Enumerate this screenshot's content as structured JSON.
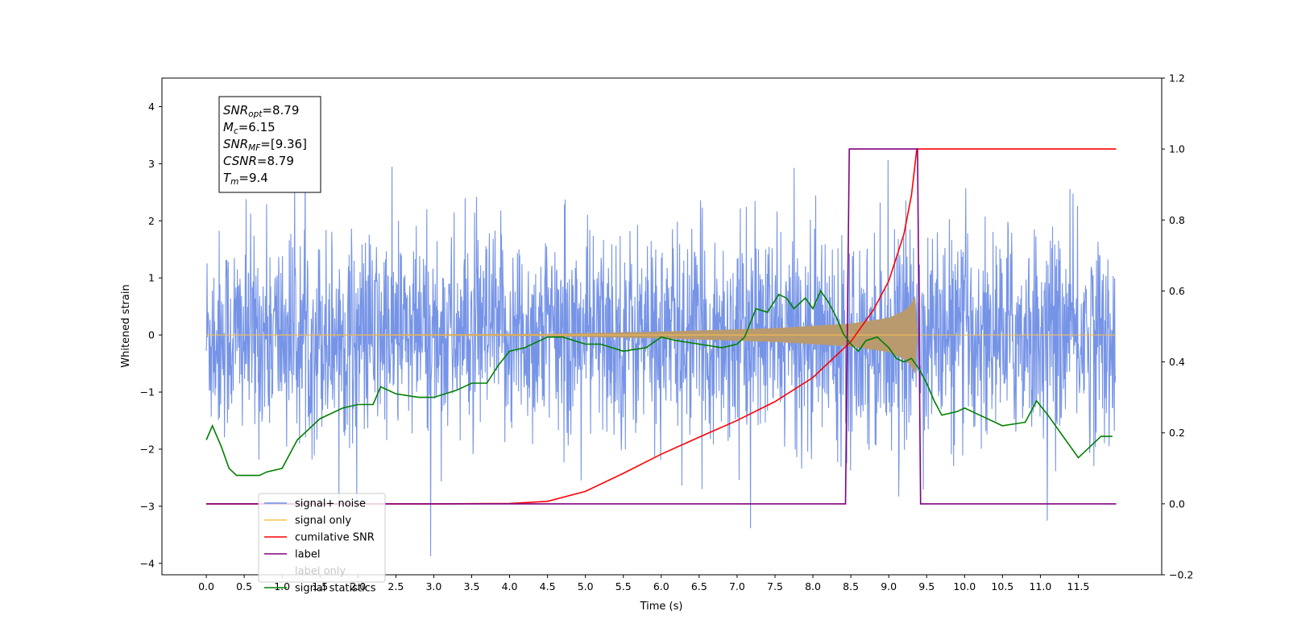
{
  "chart_data": {
    "type": "line",
    "xlabel": "Time (s)",
    "ylabel": "Whitened strain",
    "xlim": [
      -0.585,
      12.6
    ],
    "ylim_left": [
      -4.2,
      4.5
    ],
    "ylim_right": [
      -0.2,
      1.2
    ],
    "x_ticks": [
      "0.0",
      "0.5",
      "1.0",
      "1.5",
      "2.0",
      "2.5",
      "3.0",
      "3.5",
      "4.0",
      "4.5",
      "5.0",
      "5.5",
      "6.0",
      "6.5",
      "7.0",
      "7.5",
      "8.0",
      "8.5",
      "9.0",
      "9.5",
      "10.0",
      "10.5",
      "11.0",
      "11.5"
    ],
    "y_ticks_left": [
      "4",
      "3",
      "2",
      "1",
      "0",
      "−1",
      "−2",
      "−3",
      "−4"
    ],
    "y_ticks_right": [
      "1.2",
      "1.0",
      "0.8",
      "0.6",
      "0.4",
      "0.2",
      "0.0",
      "−0.2"
    ],
    "grid": false,
    "legend_position": "lower-left",
    "annotation": [
      {
        "sym": "SNR",
        "sub": "opt",
        "value": "=8.79"
      },
      {
        "sym": "M",
        "sub": "c",
        "value": "=6.15"
      },
      {
        "sym": "SNR",
        "sub": "MF",
        "value": "=[9.36]"
      },
      {
        "sym": "CSNR",
        "sub": "",
        "value": "=8.79"
      },
      {
        "sym": "T",
        "sub": "m",
        "value": "=9.4"
      }
    ],
    "series": [
      {
        "name": "signal+ noise",
        "axis": "left",
        "color": "#6f8ee6",
        "description": "noise with std ~0.9 from 0.0 to 12.0 s"
      },
      {
        "name": "signal only",
        "axis": "left",
        "color": "#ffc04d",
        "envelope": {
          "x": [
            0,
            4.5,
            6,
            7,
            7.5,
            8,
            8.5,
            9,
            9.2,
            9.3,
            9.36,
            9.38
          ],
          "amp": [
            0,
            0.02,
            0.06,
            0.1,
            0.12,
            0.16,
            0.2,
            0.3,
            0.42,
            0.55,
            0.72,
            0
          ]
        }
      },
      {
        "name": "cumilative SNR",
        "axis": "right",
        "color": "#ff0000",
        "x": [
          0,
          3.0,
          4.0,
          4.5,
          5.0,
          5.5,
          6.0,
          6.5,
          7.0,
          7.5,
          8.0,
          8.5,
          8.8,
          9.0,
          9.2,
          9.3,
          9.36,
          9.37,
          12.0
        ],
        "values": [
          0,
          0,
          0.001,
          0.007,
          0.035,
          0.086,
          0.14,
          0.188,
          0.235,
          0.288,
          0.356,
          0.457,
          0.547,
          0.628,
          0.76,
          0.87,
          0.98,
          1.0,
          1.0
        ]
      },
      {
        "name": "label",
        "axis": "right",
        "color": "#800080",
        "x": [
          0,
          8.43,
          8.48,
          9.38,
          9.42,
          12.0
        ],
        "values": [
          0,
          0,
          1,
          1,
          0,
          0
        ]
      },
      {
        "name": "label only",
        "axis": "right",
        "color": "#800080",
        "hidden": true
      },
      {
        "name": "signal statistics",
        "axis": "right",
        "color": "#008000",
        "x": [
          0,
          0.08,
          0.2,
          0.3,
          0.4,
          0.55,
          0.7,
          0.8,
          1.0,
          1.2,
          1.5,
          1.8,
          2.0,
          2.2,
          2.3,
          2.5,
          2.8,
          3.0,
          3.3,
          3.5,
          3.7,
          3.85,
          4.0,
          4.2,
          4.5,
          4.7,
          5.0,
          5.2,
          5.5,
          5.8,
          6.0,
          6.2,
          6.5,
          6.8,
          7.0,
          7.1,
          7.25,
          7.4,
          7.55,
          7.65,
          7.75,
          7.9,
          8.0,
          8.1,
          8.2,
          8.3,
          8.4,
          8.5,
          8.6,
          8.7,
          8.85,
          9.0,
          9.1,
          9.2,
          9.3,
          9.4,
          9.5,
          9.6,
          9.7,
          9.9,
          10.0,
          10.2,
          10.5,
          10.8,
          10.95,
          11.1,
          11.3,
          11.5,
          11.65,
          11.8,
          11.95
        ],
        "values": [
          0.18,
          0.22,
          0.16,
          0.1,
          0.08,
          0.08,
          0.08,
          0.09,
          0.1,
          0.18,
          0.24,
          0.27,
          0.28,
          0.28,
          0.33,
          0.31,
          0.3,
          0.3,
          0.32,
          0.34,
          0.34,
          0.39,
          0.43,
          0.44,
          0.47,
          0.47,
          0.45,
          0.45,
          0.43,
          0.44,
          0.47,
          0.46,
          0.45,
          0.44,
          0.45,
          0.47,
          0.55,
          0.54,
          0.59,
          0.58,
          0.55,
          0.58,
          0.55,
          0.6,
          0.57,
          0.53,
          0.48,
          0.45,
          0.43,
          0.46,
          0.47,
          0.44,
          0.41,
          0.4,
          0.41,
          0.38,
          0.34,
          0.29,
          0.25,
          0.26,
          0.27,
          0.25,
          0.22,
          0.23,
          0.29,
          0.25,
          0.19,
          0.13,
          0.16,
          0.19,
          0.19
        ]
      }
    ]
  }
}
